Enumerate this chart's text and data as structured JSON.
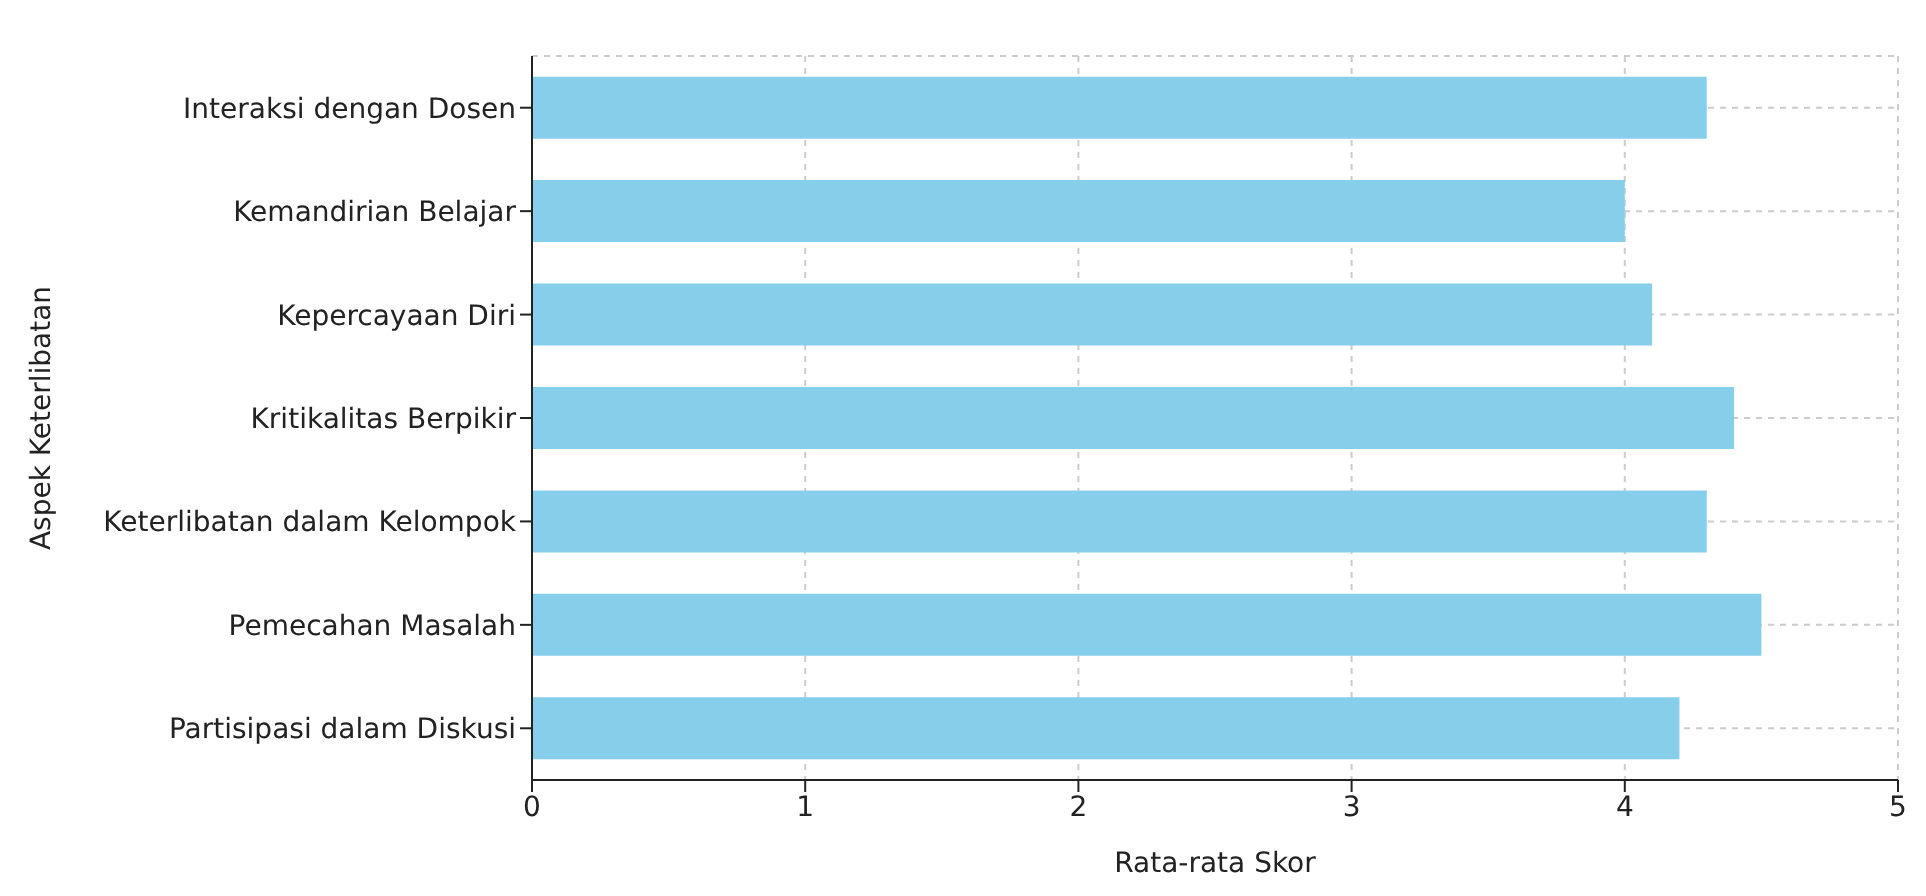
{
  "chart_data": {
    "type": "bar",
    "orientation": "horizontal",
    "xlabel": "Rata-rata Skor",
    "ylabel": "Aspek Keterlibatan",
    "categories": [
      "Interaksi dengan Dosen",
      "Kemandirian Belajar",
      "Kepercayaan Diri",
      "Kritikalitas Berpikir",
      "Keterlibatan dalam Kelompok",
      "Pemecahan Masalah",
      "Partisipasi dalam Diskusi"
    ],
    "values": [
      4.3,
      4.0,
      4.1,
      4.4,
      4.3,
      4.5,
      4.2
    ],
    "color": "#87ceeb",
    "xlim": [
      0,
      5
    ],
    "xticks": [
      0,
      1,
      2,
      3,
      4,
      5
    ],
    "grid": true
  }
}
